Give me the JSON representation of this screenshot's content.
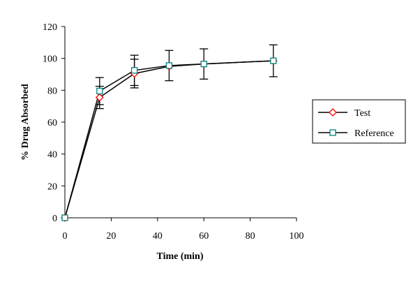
{
  "chart_data": {
    "type": "line",
    "title": "",
    "xlabel": "Time (min)",
    "ylabel": "% Drug Absorbed",
    "xlim": [
      0,
      100
    ],
    "ylim": [
      0,
      120
    ],
    "xticks": [
      0,
      20,
      40,
      60,
      80,
      100
    ],
    "yticks": [
      0,
      20,
      40,
      60,
      80,
      100,
      120
    ],
    "grid": false,
    "legend_position": "right",
    "series": [
      {
        "name": "Test",
        "marker": "diamond",
        "color": "#ff0000",
        "x": [
          0,
          15,
          30,
          45,
          60,
          90
        ],
        "y": [
          0,
          75.5,
          90.5,
          95,
          96.5,
          98.5
        ],
        "error": [
          0,
          7,
          9,
          0,
          0,
          0
        ]
      },
      {
        "name": "Reference",
        "marker": "square",
        "color": "#008080",
        "x": [
          0,
          15,
          30,
          45,
          60,
          90
        ],
        "y": [
          0,
          79.5,
          92.5,
          95.5,
          96.5,
          98.5
        ],
        "error": [
          0,
          8.5,
          9.5,
          9.5,
          9.5,
          10
        ]
      }
    ]
  }
}
